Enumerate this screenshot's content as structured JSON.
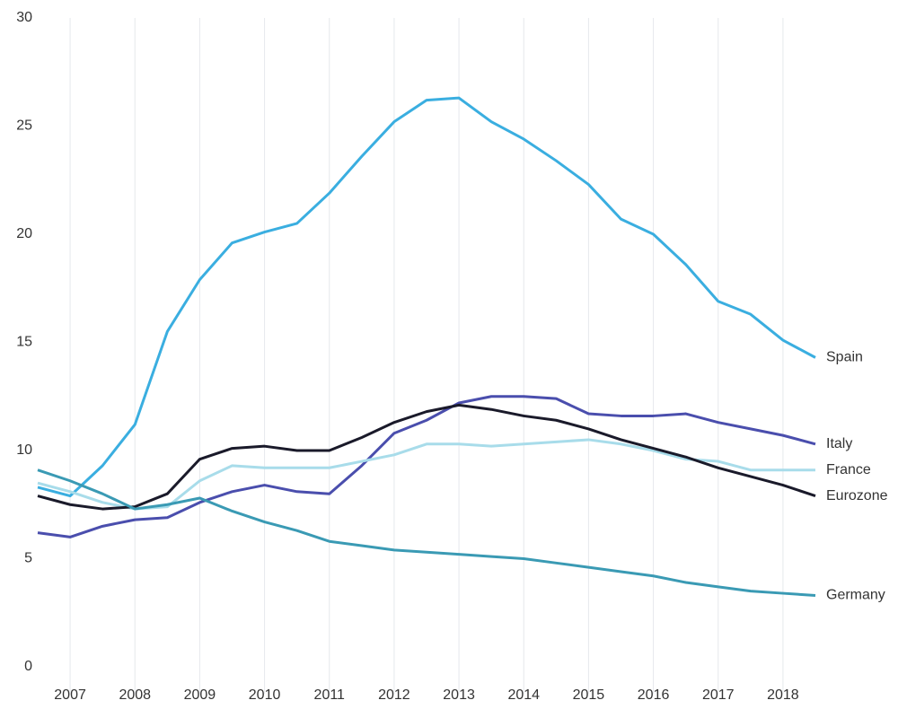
{
  "chart_data": {
    "type": "line",
    "x": [
      2007,
      2007.5,
      2008,
      2008.5,
      2009,
      2009.5,
      2010,
      2010.5,
      2011,
      2011.5,
      2012,
      2012.5,
      2013,
      2013.5,
      2014,
      2014.5,
      2015,
      2015.5,
      2016,
      2016.5,
      2017,
      2017.5,
      2018,
      2018.5,
      2019
    ],
    "series": [
      {
        "name": "Spain",
        "color": "#3aaee0",
        "values": [
          8.3,
          7.9,
          9.3,
          11.2,
          15.5,
          17.9,
          19.6,
          20.1,
          20.5,
          21.9,
          23.6,
          25.2,
          26.2,
          26.3,
          25.2,
          24.4,
          23.4,
          22.3,
          20.7,
          20.0,
          18.6,
          16.9,
          16.3,
          15.1,
          14.3
        ]
      },
      {
        "name": "Italy",
        "color": "#4a4ead",
        "values": [
          6.2,
          6.0,
          6.5,
          6.8,
          6.9,
          7.6,
          8.1,
          8.4,
          8.1,
          8.0,
          9.3,
          10.8,
          11.4,
          12.2,
          12.5,
          12.5,
          12.4,
          11.7,
          11.6,
          11.6,
          11.7,
          11.3,
          11.0,
          10.7,
          10.3
        ]
      },
      {
        "name": "France",
        "color": "#a8dcea",
        "values": [
          8.5,
          8.1,
          7.6,
          7.3,
          7.4,
          8.6,
          9.3,
          9.2,
          9.2,
          9.2,
          9.5,
          9.8,
          10.3,
          10.3,
          10.2,
          10.3,
          10.4,
          10.5,
          10.3,
          10.0,
          9.6,
          9.5,
          9.1,
          9.1,
          9.1
        ]
      },
      {
        "name": "Eurozone",
        "color": "#1a1a2a",
        "values": [
          7.9,
          7.5,
          7.3,
          7.4,
          8.0,
          9.6,
          10.1,
          10.2,
          10.0,
          10.0,
          10.6,
          11.3,
          11.8,
          12.1,
          11.9,
          11.6,
          11.4,
          11.0,
          10.5,
          10.1,
          9.7,
          9.2,
          8.8,
          8.4,
          7.9
        ]
      },
      {
        "name": "Germany",
        "color": "#3a9ab4",
        "values": [
          9.1,
          8.6,
          8.0,
          7.3,
          7.5,
          7.8,
          7.2,
          6.7,
          6.3,
          5.8,
          5.6,
          5.4,
          5.3,
          5.2,
          5.1,
          5.0,
          4.8,
          4.6,
          4.4,
          4.2,
          3.9,
          3.7,
          3.5,
          3.4,
          3.3
        ]
      }
    ],
    "xlim": [
      2007,
      2019
    ],
    "xticks": [
      {
        "value": 2007.5,
        "label": "2007"
      },
      {
        "value": 2008.5,
        "label": "2008"
      },
      {
        "value": 2009.5,
        "label": "2009"
      },
      {
        "value": 2010.5,
        "label": "2010"
      },
      {
        "value": 2011.5,
        "label": "2011"
      },
      {
        "value": 2012.5,
        "label": "2012"
      },
      {
        "value": 2013.5,
        "label": "2013"
      },
      {
        "value": 2014.5,
        "label": "2014"
      },
      {
        "value": 2015.5,
        "label": "2015"
      },
      {
        "value": 2016.5,
        "label": "2016"
      },
      {
        "value": 2017.5,
        "label": "2017"
      },
      {
        "value": 2018.5,
        "label": "2018"
      }
    ],
    "ylim": [
      0,
      30
    ],
    "yticks": [
      0,
      5,
      10,
      15,
      20,
      25,
      30
    ],
    "grid": "x"
  }
}
